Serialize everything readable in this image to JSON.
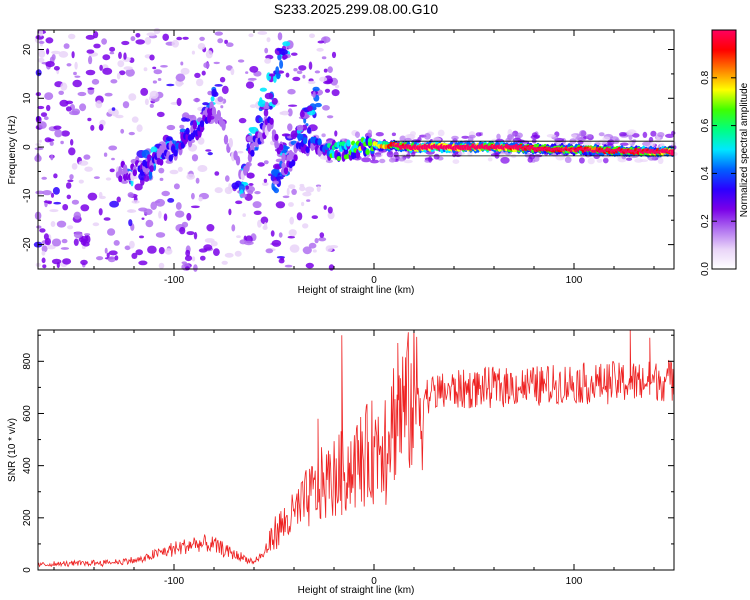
{
  "title": "S233.2025.299.08.00.G10",
  "chart_data": [
    {
      "type": "heatmap",
      "name": "spectrogram",
      "xlabel": "Height of straight line (km)",
      "ylabel": "Frequency (Hz)",
      "xlim": [
        -168,
        150
      ],
      "ylim": [
        -25,
        24
      ],
      "xticks": [
        -100,
        0,
        100
      ],
      "xtick_labels": [
        "-100",
        "0",
        "100"
      ],
      "yticks": [
        -20,
        -10,
        0,
        10,
        20
      ],
      "ytick_labels": [
        "-20",
        "-10",
        "0",
        "10",
        "20"
      ],
      "colorbar": {
        "label": "Normalized spectral amplitude",
        "range": [
          0,
          1
        ],
        "ticks": [
          0.0,
          0.2,
          0.4,
          0.6,
          0.8
        ],
        "tick_labels": [
          "0.0",
          "0.2",
          "0.4",
          "0.6",
          "0.8"
        ],
        "colors": [
          "#ffffff",
          "#e9d4f8",
          "#b070f0",
          "#7a00e8",
          "#2b00ff",
          "#0060ff",
          "#00e8ff",
          "#00ff80",
          "#40ff00",
          "#ffff00",
          "#ff8000",
          "#ff0000",
          "#ff0060"
        ]
      },
      "ridge": [
        {
          "x": -124,
          "f": -5,
          "amp": 0.3
        },
        {
          "x": -110,
          "f": -3,
          "amp": 0.35
        },
        {
          "x": -98,
          "f": 0,
          "amp": 0.4
        },
        {
          "x": -88,
          "f": 4,
          "amp": 0.45
        },
        {
          "x": -80,
          "f": 8,
          "amp": 0.3
        },
        {
          "x": -66,
          "f": -6,
          "amp": 0.25
        },
        {
          "x": -58,
          "f": 2,
          "amp": 0.35
        },
        {
          "x": -52,
          "f": 5,
          "amp": 0.3
        },
        {
          "x": -44,
          "f": -4,
          "amp": 0.3
        },
        {
          "x": -36,
          "f": 0,
          "amp": 0.4
        },
        {
          "x": -28,
          "f": 0,
          "amp": 0.45
        },
        {
          "x": -18,
          "f": -1,
          "amp": 0.55
        },
        {
          "x": -8,
          "f": 0,
          "amp": 0.6
        },
        {
          "x": 0,
          "f": 0.5,
          "amp": 0.6
        },
        {
          "x": 20,
          "f": 0,
          "amp": 0.9
        },
        {
          "x": 60,
          "f": 0,
          "amp": 0.85
        },
        {
          "x": 100,
          "f": -0.5,
          "amp": 0.75
        },
        {
          "x": 145,
          "f": -1,
          "amp": 0.85
        }
      ]
    },
    {
      "type": "line",
      "name": "snr",
      "xlabel": "Height of straight line (km)",
      "ylabel": "SNR (10 * v/v)",
      "xlim": [
        -168,
        150
      ],
      "ylim": [
        0,
        920
      ],
      "xticks": [
        -100,
        0,
        100
      ],
      "xtick_labels": [
        "-100",
        "0",
        "100"
      ],
      "yticks": [
        0,
        200,
        400,
        600,
        800
      ],
      "ytick_labels": [
        "0",
        "200",
        "400",
        "600",
        "800"
      ],
      "color": "#ee2222",
      "series": [
        {
          "name": "SNR",
          "x": [
            -168,
            -150,
            -130,
            -115,
            -110,
            -100,
            -90,
            -80,
            -70,
            -60,
            -55,
            -50,
            -40,
            -30,
            -25,
            -20,
            -15,
            -10,
            -5,
            0,
            5,
            10,
            15,
            20,
            30,
            40,
            50,
            60,
            70,
            80,
            90,
            100,
            110,
            120,
            130,
            140,
            150
          ],
          "y": [
            20,
            25,
            30,
            40,
            60,
            80,
            100,
            95,
            60,
            30,
            60,
            140,
            210,
            300,
            330,
            350,
            380,
            400,
            430,
            460,
            520,
            580,
            620,
            650,
            680,
            690,
            695,
            700,
            705,
            705,
            710,
            715,
            715,
            720,
            720,
            725,
            730
          ]
        }
      ],
      "spikes": [
        {
          "x": -16,
          "y": 900
        },
        {
          "x": 12,
          "y": 870
        },
        {
          "x": 128,
          "y": 920
        },
        {
          "x": 138,
          "y": 890
        },
        {
          "x": -28,
          "y": 580
        },
        {
          "x": 6,
          "y": 250
        }
      ]
    }
  ]
}
